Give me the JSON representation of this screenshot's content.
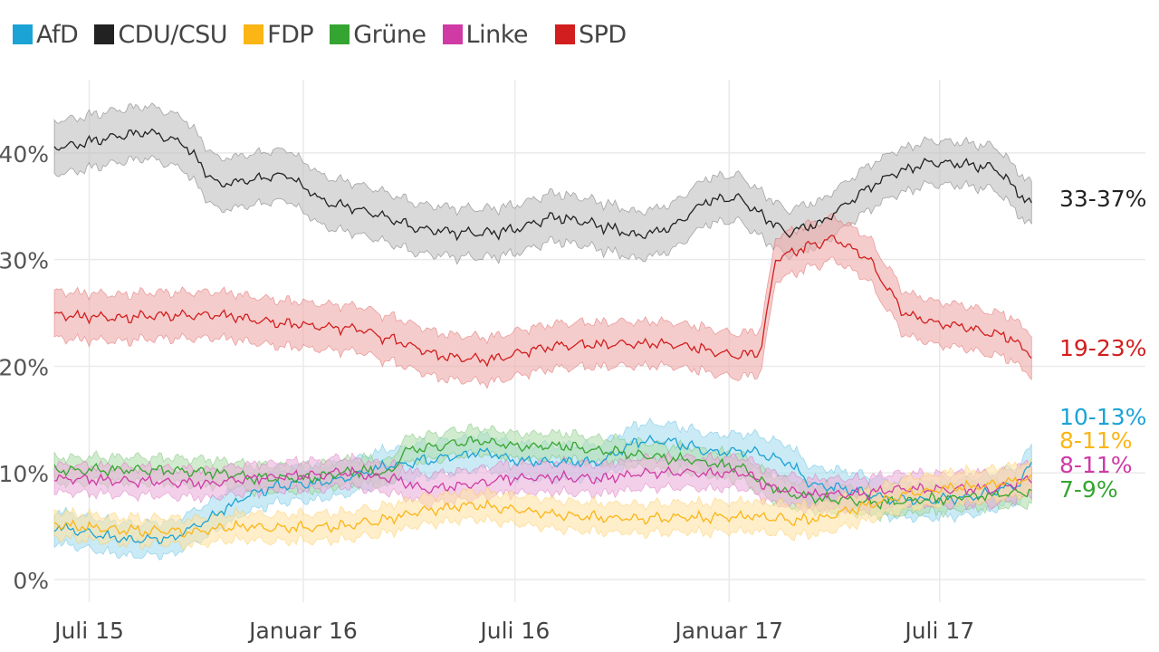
{
  "chart_data": {
    "type": "line",
    "title": "",
    "ylabel": "",
    "xlabel": "",
    "ylim": [
      0,
      45
    ],
    "y_ticks": [
      {
        "value": 0,
        "label": "0%"
      },
      {
        "value": 10,
        "label": "10%"
      },
      {
        "value": 20,
        "label": "20%"
      },
      {
        "value": 30,
        "label": "30%"
      },
      {
        "value": 40,
        "label": "40%"
      }
    ],
    "x_ticks": [
      {
        "label": "Juli 15",
        "t": 0
      },
      {
        "label": "Januar 16",
        "t": 184
      },
      {
        "label": "Juli 16",
        "t": 366
      },
      {
        "label": "Januar 17",
        "t": 550
      },
      {
        "label": "Juli 17",
        "t": 731
      }
    ],
    "x_range": [
      -30,
      830
    ],
    "x_unit": "days since 1 July 2015",
    "legend": {
      "position": "top-left",
      "entries": [
        {
          "name": "AfD",
          "color": "#1ba3d6"
        },
        {
          "name": "CDU/CSU",
          "color": "#222222"
        },
        {
          "name": "FDP",
          "color": "#fbb515"
        },
        {
          "name": "Grüne",
          "color": "#35a531"
        },
        {
          "name": "Linke",
          "color": "#cf3aa5"
        },
        {
          "name": "SPD",
          "color": "#d21e1e"
        }
      ]
    },
    "series": [
      {
        "name": "CDU/CSU",
        "color": "#222222",
        "fill": "#bfbfbf",
        "end_label": "33-37%",
        "points": [
          [
            -30,
            40.5
          ],
          [
            -10,
            40.8
          ],
          [
            20,
            41.5
          ],
          [
            50,
            42
          ],
          [
            80,
            41
          ],
          [
            110,
            37
          ],
          [
            140,
            37.5
          ],
          [
            170,
            38
          ],
          [
            200,
            35.5
          ],
          [
            240,
            34.5
          ],
          [
            280,
            33
          ],
          [
            320,
            32.5
          ],
          [
            350,
            32.5
          ],
          [
            370,
            33
          ],
          [
            400,
            34
          ],
          [
            430,
            33.5
          ],
          [
            470,
            32.2
          ],
          [
            500,
            33
          ],
          [
            530,
            35.5
          ],
          [
            560,
            35.8
          ],
          [
            580,
            34
          ],
          [
            600,
            32.5
          ],
          [
            630,
            33.5
          ],
          [
            660,
            36
          ],
          [
            690,
            38
          ],
          [
            720,
            39
          ],
          [
            750,
            39
          ],
          [
            780,
            38.5
          ],
          [
            810,
            35
          ]
        ],
        "bands": [
          [
            -30,
            2.5
          ],
          [
            810,
            2
          ]
        ]
      },
      {
        "name": "SPD",
        "color": "#d21e1e",
        "fill": "#eeaaaa",
        "end_label": "19-23%",
        "points": [
          [
            -30,
            24.8
          ],
          [
            10,
            24.6
          ],
          [
            60,
            24.7
          ],
          [
            110,
            24.8
          ],
          [
            150,
            24.2
          ],
          [
            190,
            23.8
          ],
          [
            230,
            23.5
          ],
          [
            260,
            22.5
          ],
          [
            300,
            21
          ],
          [
            340,
            20.5
          ],
          [
            380,
            21.5
          ],
          [
            410,
            22
          ],
          [
            450,
            22
          ],
          [
            490,
            22.2
          ],
          [
            520,
            21.8
          ],
          [
            555,
            21
          ],
          [
            577,
            21.3
          ],
          [
            590,
            30
          ],
          [
            610,
            31
          ],
          [
            640,
            32
          ],
          [
            670,
            30
          ],
          [
            700,
            25
          ],
          [
            730,
            24
          ],
          [
            760,
            23.5
          ],
          [
            790,
            22.8
          ],
          [
            810,
            21
          ]
        ],
        "bands": [
          [
            -30,
            2.2
          ],
          [
            810,
            2
          ]
        ]
      },
      {
        "name": "AfD",
        "color": "#1ba3d6",
        "fill": "#a6dcef",
        "end_label": "10-13%",
        "points": [
          [
            -30,
            5
          ],
          [
            0,
            4.3
          ],
          [
            30,
            3.8
          ],
          [
            70,
            3.8
          ],
          [
            100,
            5.5
          ],
          [
            130,
            7.5
          ],
          [
            160,
            8.8
          ],
          [
            190,
            9
          ],
          [
            220,
            9.5
          ],
          [
            250,
            10.5
          ],
          [
            280,
            11
          ],
          [
            310,
            11.5
          ],
          [
            340,
            12
          ],
          [
            370,
            11
          ],
          [
            400,
            11
          ],
          [
            440,
            11
          ],
          [
            470,
            13
          ],
          [
            500,
            13
          ],
          [
            530,
            12
          ],
          [
            570,
            12
          ],
          [
            600,
            11
          ],
          [
            620,
            9
          ],
          [
            650,
            8.5
          ],
          [
            690,
            7.5
          ],
          [
            730,
            7.5
          ],
          [
            770,
            8
          ],
          [
            800,
            9
          ],
          [
            810,
            11
          ]
        ],
        "bands": [
          [
            -30,
            1.5
          ],
          [
            810,
            1.7
          ]
        ]
      },
      {
        "name": "Grüne",
        "color": "#35a531",
        "fill": "#b3deaf",
        "end_label": "7-9%",
        "points": [
          [
            -30,
            10.2
          ],
          [
            20,
            10.3
          ],
          [
            70,
            10.2
          ],
          [
            110,
            10
          ],
          [
            150,
            9.5
          ],
          [
            190,
            9.5
          ],
          [
            230,
            10.2
          ],
          [
            260,
            10
          ],
          [
            270,
            12
          ],
          [
            300,
            12.5
          ],
          [
            330,
            13
          ],
          [
            370,
            12.5
          ],
          [
            410,
            12.5
          ],
          [
            450,
            12
          ],
          [
            490,
            11.5
          ],
          [
            530,
            11
          ],
          [
            560,
            10.5
          ],
          [
            580,
            9
          ],
          [
            600,
            8
          ],
          [
            640,
            7.5
          ],
          [
            680,
            7.2
          ],
          [
            720,
            7.5
          ],
          [
            760,
            7.8
          ],
          [
            810,
            8.2
          ]
        ],
        "bands": [
          [
            -30,
            1.2
          ],
          [
            810,
            1.2
          ]
        ]
      },
      {
        "name": "Linke",
        "color": "#cf3aa5",
        "fill": "#ebb0da",
        "end_label": "8-11%",
        "points": [
          [
            -30,
            9.5
          ],
          [
            20,
            9.3
          ],
          [
            60,
            9.2
          ],
          [
            100,
            9
          ],
          [
            140,
            9.5
          ],
          [
            180,
            9.8
          ],
          [
            220,
            10
          ],
          [
            260,
            9.5
          ],
          [
            290,
            8.5
          ],
          [
            320,
            8.8
          ],
          [
            360,
            9.5
          ],
          [
            400,
            9.5
          ],
          [
            440,
            9.5
          ],
          [
            480,
            10
          ],
          [
            520,
            10
          ],
          [
            560,
            10
          ],
          [
            590,
            8.5
          ],
          [
            620,
            8
          ],
          [
            660,
            8
          ],
          [
            700,
            8.5
          ],
          [
            740,
            8.5
          ],
          [
            780,
            8.5
          ],
          [
            810,
            9.5
          ]
        ],
        "bands": [
          [
            -30,
            1.3
          ],
          [
            810,
            1.5
          ]
        ]
      },
      {
        "name": "FDP",
        "color": "#fbb515",
        "fill": "#fde2a6",
        "end_label": "8-11%",
        "points": [
          [
            -30,
            5.2
          ],
          [
            10,
            4.8
          ],
          [
            50,
            4.5
          ],
          [
            90,
            4.5
          ],
          [
            130,
            5
          ],
          [
            170,
            4.8
          ],
          [
            210,
            5
          ],
          [
            250,
            5.5
          ],
          [
            290,
            6.5
          ],
          [
            330,
            7
          ],
          [
            370,
            6.5
          ],
          [
            410,
            6
          ],
          [
            450,
            5.8
          ],
          [
            490,
            5.8
          ],
          [
            530,
            5.8
          ],
          [
            570,
            6
          ],
          [
            610,
            5.5
          ],
          [
            640,
            6
          ],
          [
            670,
            7
          ],
          [
            700,
            8
          ],
          [
            730,
            8.5
          ],
          [
            770,
            8.8
          ],
          [
            810,
            9.5
          ]
        ],
        "bands": [
          [
            -30,
            1.2
          ],
          [
            810,
            1.5
          ]
        ]
      }
    ]
  }
}
